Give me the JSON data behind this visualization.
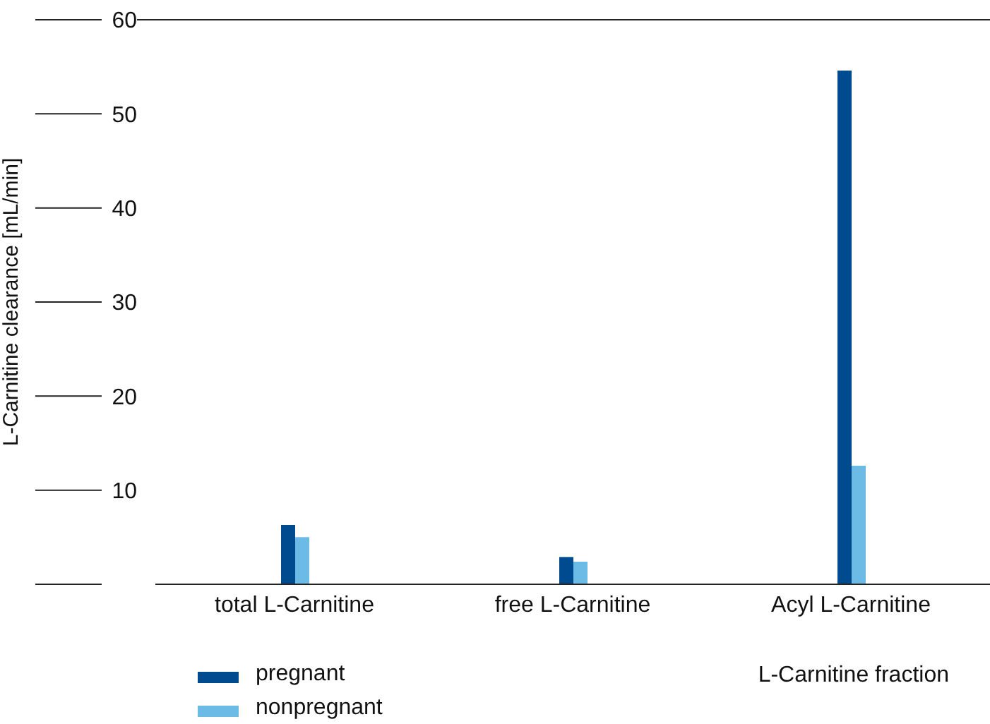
{
  "chart_data": {
    "type": "bar",
    "ylabel": "L-Carnitine clearance [mL/min]",
    "xlabel": "L-Carnitine fraction",
    "categories": [
      "total L-Carnitine",
      "free L-Carnitine",
      "Acyl L-Carnitine"
    ],
    "series": [
      {
        "name": "pregnant",
        "color": "#004a8f",
        "values": [
          6.3,
          2.9,
          54.6
        ]
      },
      {
        "name": "nonpregnant",
        "color": "#6bbbe6",
        "values": [
          5.0,
          2.4,
          12.6
        ]
      }
    ],
    "ylim": [
      0,
      60
    ],
    "yticks": [
      {
        "value": 0,
        "label": null
      },
      10,
      20,
      30,
      40,
      50,
      60
    ],
    "legend": "bottom left"
  }
}
